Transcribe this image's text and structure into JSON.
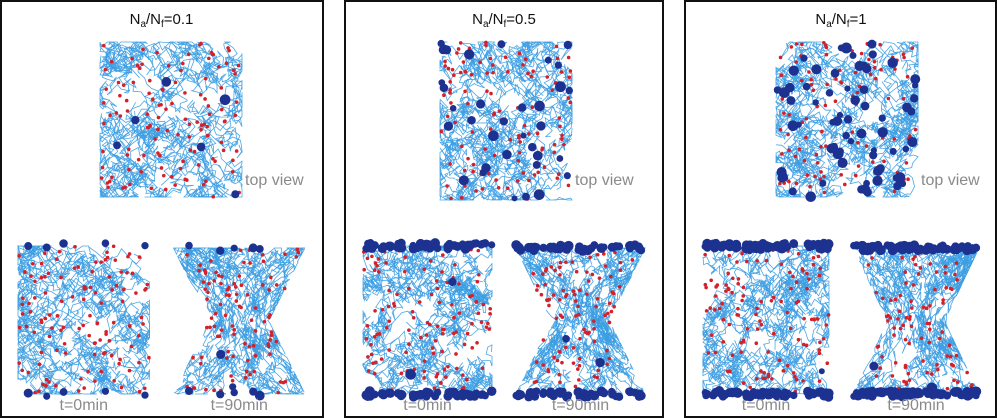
{
  "panels": [
    {
      "title": {
        "n1": "N",
        "s1": "a",
        "n2": "/N",
        "s2": "f",
        "rest": "=0.1"
      },
      "top_view": "top view",
      "t0": "t=0min",
      "t90": "t=90min"
    },
    {
      "title": {
        "n1": "N",
        "s1": "a",
        "n2": "/N",
        "s2": "f",
        "rest": "=0.5"
      },
      "top_view": "top view",
      "t0": "t=0min",
      "t90": "t=90min"
    },
    {
      "title": {
        "n1": "N",
        "s1": "a",
        "n2": "/N",
        "s2": "f",
        "rest": "=1"
      },
      "top_view": "top view",
      "t0": "t=0min",
      "t90": "t=90min"
    }
  ]
}
